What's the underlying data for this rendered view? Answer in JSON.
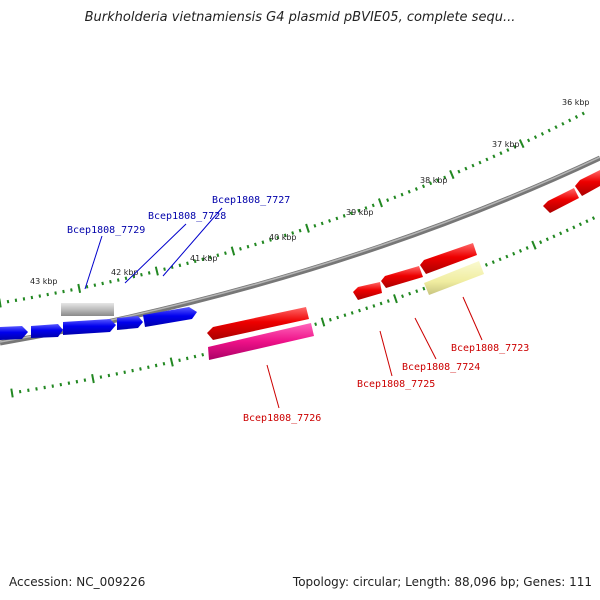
{
  "title": "Burkholderia vietnamiensis G4 plasmid pBVIE05, complete sequ...",
  "footer": {
    "accession": "Accession: NC_009226",
    "summary": "Topology: circular; Length: 88,096 bp; Genes: 111"
  },
  "scale_labels": [
    "36 kbp",
    "37 kbp",
    "38 kbp",
    "39 kbp",
    "40 kbp",
    "41 kbp",
    "42 kbp",
    "43 kbp"
  ],
  "gene_labels": {
    "forward_strand": [
      "Bcep1808_7727",
      "Bcep1808_7728",
      "Bcep1808_7729"
    ],
    "reverse_strand": [
      "Bcep1808_7723",
      "Bcep1808_7724",
      "Bcep1808_7725",
      "Bcep1808_7726"
    ]
  },
  "colors": {
    "forward_cds": "#0000ee",
    "reverse_cds": "#ee0000",
    "label_forward": "#0000aa",
    "label_reverse": "#cc0000",
    "pseudogene": "#aaaaaa",
    "rna_feature": "#e0e090",
    "misc_feature": "#ee1188",
    "tick": "#228822",
    "backbone": "#777777"
  }
}
